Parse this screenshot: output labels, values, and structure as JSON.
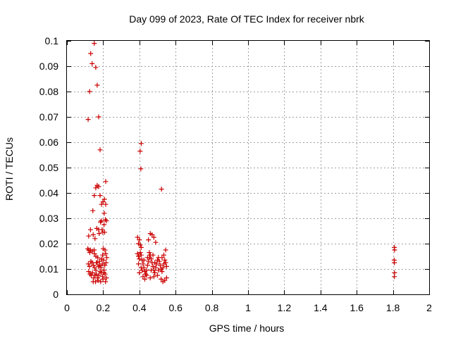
{
  "chart_data": {
    "type": "scatter",
    "title": "Day 099 of 2023, Rate Of TEC Index for receiver nbrk",
    "xlabel": "GPS time / hours",
    "ylabel": "ROTI / TECUs",
    "xlim": [
      0,
      2
    ],
    "ylim": [
      0,
      0.1
    ],
    "xticks": [
      0,
      0.2,
      0.4,
      0.6,
      0.8,
      1,
      1.2,
      1.4,
      1.6,
      1.8,
      2
    ],
    "xtick_labels": [
      "0",
      "0.2",
      "0.4",
      "0.6",
      "0.8",
      "1",
      "1.2",
      "1.4",
      "1.6",
      "1.8",
      "2"
    ],
    "yticks": [
      0,
      0.01,
      0.02,
      0.03,
      0.04,
      0.05,
      0.06,
      0.07,
      0.08,
      0.09,
      0.1
    ],
    "ytick_labels": [
      "0",
      "0.01",
      "0.02",
      "0.03",
      "0.04",
      "0.05",
      "0.06",
      "0.07",
      "0.08",
      "0.09",
      "0.1"
    ],
    "grid": true,
    "marker": "+",
    "color": "#cc0000",
    "series": [
      {
        "name": "ROTI",
        "points": [
          [
            0.117,
            0.069
          ],
          [
            0.125,
            0.08
          ],
          [
            0.131,
            0.095
          ],
          [
            0.139,
            0.091
          ],
          [
            0.151,
            0.099
          ],
          [
            0.159,
            0.0895
          ],
          [
            0.167,
            0.0825
          ],
          [
            0.175,
            0.07
          ],
          [
            0.183,
            0.057
          ],
          [
            0.151,
            0.039
          ],
          [
            0.159,
            0.042
          ],
          [
            0.167,
            0.043
          ],
          [
            0.175,
            0.0425
          ],
          [
            0.183,
            0.039
          ],
          [
            0.191,
            0.0355
          ],
          [
            0.199,
            0.0365
          ],
          [
            0.207,
            0.0375
          ],
          [
            0.214,
            0.0445
          ],
          [
            0.214,
            0.0355
          ],
          [
            0.143,
            0.033
          ],
          [
            0.206,
            0.032
          ],
          [
            0.12,
            0.023
          ],
          [
            0.13,
            0.0255
          ],
          [
            0.145,
            0.0235
          ],
          [
            0.155,
            0.022
          ],
          [
            0.165,
            0.026
          ],
          [
            0.175,
            0.0255
          ],
          [
            0.185,
            0.0285
          ],
          [
            0.19,
            0.029
          ],
          [
            0.198,
            0.0245
          ],
          [
            0.205,
            0.0275
          ],
          [
            0.212,
            0.0295
          ],
          [
            0.218,
            0.029
          ],
          [
            0.178,
            0.024
          ],
          [
            0.194,
            0.0255
          ],
          [
            0.208,
            0.0245
          ],
          [
            0.115,
            0.018
          ],
          [
            0.12,
            0.0175
          ],
          [
            0.13,
            0.0175
          ],
          [
            0.14,
            0.017
          ],
          [
            0.15,
            0.0175
          ],
          [
            0.16,
            0.015
          ],
          [
            0.17,
            0.0145
          ],
          [
            0.18,
            0.013
          ],
          [
            0.19,
            0.014
          ],
          [
            0.2,
            0.018
          ],
          [
            0.21,
            0.0175
          ],
          [
            0.22,
            0.0145
          ],
          [
            0.118,
            0.012
          ],
          [
            0.125,
            0.011
          ],
          [
            0.132,
            0.013
          ],
          [
            0.139,
            0.0125
          ],
          [
            0.146,
            0.0115
          ],
          [
            0.153,
            0.0105
          ],
          [
            0.16,
            0.0095
          ],
          [
            0.167,
            0.0125
          ],
          [
            0.174,
            0.011
          ],
          [
            0.181,
            0.0115
          ],
          [
            0.188,
            0.0105
          ],
          [
            0.195,
            0.012
          ],
          [
            0.202,
            0.0135
          ],
          [
            0.209,
            0.0115
          ],
          [
            0.216,
            0.0125
          ],
          [
            0.12,
            0.009
          ],
          [
            0.127,
            0.008
          ],
          [
            0.134,
            0.0075
          ],
          [
            0.141,
            0.0085
          ],
          [
            0.148,
            0.0065
          ],
          [
            0.155,
            0.0075
          ],
          [
            0.162,
            0.008
          ],
          [
            0.169,
            0.0065
          ],
          [
            0.176,
            0.0075
          ],
          [
            0.183,
            0.009
          ],
          [
            0.19,
            0.0085
          ],
          [
            0.197,
            0.007
          ],
          [
            0.204,
            0.0085
          ],
          [
            0.211,
            0.008
          ],
          [
            0.218,
            0.0065
          ],
          [
            0.145,
            0.005
          ],
          [
            0.158,
            0.005
          ],
          [
            0.172,
            0.0055
          ],
          [
            0.186,
            0.005
          ],
          [
            0.199,
            0.006
          ],
          [
            0.213,
            0.005
          ],
          [
            0.126,
            0.0165
          ],
          [
            0.152,
            0.016
          ],
          [
            0.197,
            0.0155
          ],
          [
            0.214,
            0.016
          ],
          [
            0.163,
            0.0125
          ],
          [
            0.205,
            0.0095
          ],
          [
            0.404,
            0.0565
          ],
          [
            0.41,
            0.0595
          ],
          [
            0.408,
            0.0495
          ],
          [
            0.522,
            0.0415
          ],
          [
            0.39,
            0.0225
          ],
          [
            0.4,
            0.0215
          ],
          [
            0.395,
            0.02
          ],
          [
            0.41,
            0.0185
          ],
          [
            0.405,
            0.0195
          ],
          [
            0.46,
            0.024
          ],
          [
            0.47,
            0.0235
          ],
          [
            0.48,
            0.0225
          ],
          [
            0.49,
            0.0205
          ],
          [
            0.45,
            0.0215
          ],
          [
            0.39,
            0.016
          ],
          [
            0.395,
            0.015
          ],
          [
            0.4,
            0.014
          ],
          [
            0.405,
            0.0165
          ],
          [
            0.41,
            0.0155
          ],
          [
            0.415,
            0.0135
          ],
          [
            0.42,
            0.012
          ],
          [
            0.425,
            0.0105
          ],
          [
            0.43,
            0.009
          ],
          [
            0.435,
            0.008
          ],
          [
            0.44,
            0.0095
          ],
          [
            0.445,
            0.0115
          ],
          [
            0.45,
            0.013
          ],
          [
            0.455,
            0.0145
          ],
          [
            0.46,
            0.0155
          ],
          [
            0.465,
            0.014
          ],
          [
            0.47,
            0.0125
          ],
          [
            0.475,
            0.011
          ],
          [
            0.48,
            0.0095
          ],
          [
            0.485,
            0.0085
          ],
          [
            0.49,
            0.0105
          ],
          [
            0.495,
            0.012
          ],
          [
            0.5,
            0.0135
          ],
          [
            0.505,
            0.0145
          ],
          [
            0.51,
            0.013
          ],
          [
            0.515,
            0.0115
          ],
          [
            0.52,
            0.01
          ],
          [
            0.525,
            0.009
          ],
          [
            0.53,
            0.0105
          ],
          [
            0.535,
            0.012
          ],
          [
            0.54,
            0.0135
          ],
          [
            0.545,
            0.0125
          ],
          [
            0.55,
            0.011
          ],
          [
            0.42,
            0.007
          ],
          [
            0.43,
            0.006
          ],
          [
            0.44,
            0.0075
          ],
          [
            0.46,
            0.0065
          ],
          [
            0.48,
            0.007
          ],
          [
            0.5,
            0.0075
          ],
          [
            0.52,
            0.006
          ],
          [
            0.53,
            0.005
          ],
          [
            0.54,
            0.0055
          ],
          [
            0.55,
            0.0065
          ],
          [
            0.395,
            0.012
          ],
          [
            0.41,
            0.0105
          ],
          [
            0.425,
            0.0135
          ],
          [
            0.445,
            0.0145
          ],
          [
            0.465,
            0.0095
          ],
          [
            0.485,
            0.0125
          ],
          [
            0.505,
            0.0095
          ],
          [
            0.525,
            0.0145
          ],
          [
            0.545,
            0.0175
          ],
          [
            0.535,
            0.0155
          ],
          [
            0.455,
            0.0165
          ],
          [
            0.475,
            0.0155
          ],
          [
            0.4,
            0.0085
          ],
          [
            0.415,
            0.0095
          ],
          [
            1.808,
            0.0185
          ],
          [
            1.809,
            0.0175
          ],
          [
            1.807,
            0.0135
          ],
          [
            1.808,
            0.0125
          ],
          [
            1.809,
            0.0085
          ],
          [
            1.808,
            0.007
          ]
        ]
      }
    ]
  }
}
